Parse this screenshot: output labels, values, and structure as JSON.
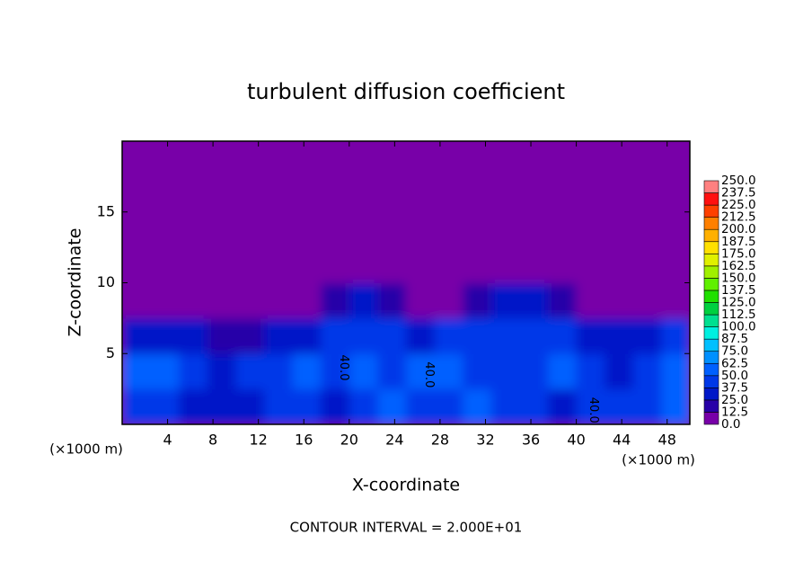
{
  "chart_data": {
    "type": "contour",
    "title": "turbulent diffusion coefficient",
    "xlabel": "X-coordinate",
    "ylabel": "Z-coordinate",
    "x_unit_left": "(×1000 m)",
    "x_unit_right": "(×1000 m)",
    "footnote": "CONTOUR INTERVAL = 2.000E+01",
    "xlim": [
      0,
      50
    ],
    "ylim": [
      0,
      20
    ],
    "xticks": [
      4,
      8,
      12,
      16,
      20,
      24,
      28,
      32,
      36,
      40,
      44,
      48
    ],
    "yticks": [
      5,
      10,
      15
    ],
    "z": [
      [
        45,
        40,
        35,
        30,
        35,
        40,
        45,
        30,
        45,
        50,
        40,
        45,
        50,
        45,
        40,
        35,
        40,
        45,
        40,
        50
      ],
      [
        55,
        60,
        40,
        35,
        40,
        45,
        55,
        45,
        50,
        45,
        50,
        60,
        45,
        40,
        45,
        50,
        45,
        35,
        45,
        55
      ],
      [
        35,
        30,
        25,
        12.5,
        15,
        25,
        30,
        40,
        45,
        40,
        25,
        40,
        45,
        45,
        40,
        45,
        35,
        30,
        25,
        40
      ],
      [
        0,
        0,
        0,
        0,
        0,
        0,
        0,
        12.5,
        25,
        12.5,
        0,
        0,
        12.5,
        25,
        25,
        12.5,
        0,
        0,
        0,
        0
      ],
      [
        0,
        0,
        0,
        0,
        0,
        0,
        0,
        0,
        0,
        0,
        0,
        0,
        0,
        0,
        0,
        0,
        0,
        0,
        0,
        0
      ],
      [
        0,
        0,
        0,
        0,
        0,
        0,
        0,
        0,
        0,
        0,
        0,
        0,
        0,
        0,
        0,
        0,
        0,
        0,
        0,
        0
      ],
      [
        0,
        0,
        0,
        0,
        0,
        0,
        0,
        0,
        0,
        0,
        0,
        0,
        0,
        0,
        0,
        0,
        0,
        0,
        0,
        0
      ],
      [
        0,
        0,
        0,
        0,
        0,
        0,
        0,
        0,
        0,
        0,
        0,
        0,
        0,
        0,
        0,
        0,
        0,
        0,
        0,
        0
      ]
    ],
    "contour_labels": [
      {
        "text": "40.0",
        "x": 19.5,
        "y": 4
      },
      {
        "text": "40.0",
        "x": 27,
        "y": 3.5
      },
      {
        "text": "40.0",
        "x": 41.5,
        "y": 1
      }
    ],
    "colorbar": {
      "ticks": [
        {
          "value": 0,
          "label": "0.0"
        },
        12.5,
        {
          "value": 25,
          "label": "25.0"
        },
        37.5,
        {
          "value": 50,
          "label": "50.0"
        },
        62.5,
        {
          "value": 75,
          "label": "75.0"
        },
        87.5,
        {
          "value": 100,
          "label": "100.0"
        },
        112.5,
        {
          "value": 125,
          "label": "125.0"
        },
        137.5,
        {
          "value": 150,
          "label": "150.0"
        },
        162.5,
        {
          "value": 175,
          "label": "175.0"
        },
        187.5,
        {
          "value": 200,
          "label": "200.0"
        },
        212.5,
        {
          "value": 225,
          "label": "225.0"
        },
        237.5,
        {
          "value": 250,
          "label": "250.0"
        }
      ],
      "colors": [
        "#7800a8",
        "#2800a8",
        "#0018c8",
        "#0038e8",
        "#0060ff",
        "#0090ff",
        "#00c0ff",
        "#00f0e0",
        "#00e090",
        "#00d040",
        "#20e000",
        "#60f000",
        "#a0f000",
        "#e0f000",
        "#ffe000",
        "#ffb000",
        "#ff8000",
        "#ff4000",
        "#ff1010",
        "#ff8080"
      ]
    }
  }
}
